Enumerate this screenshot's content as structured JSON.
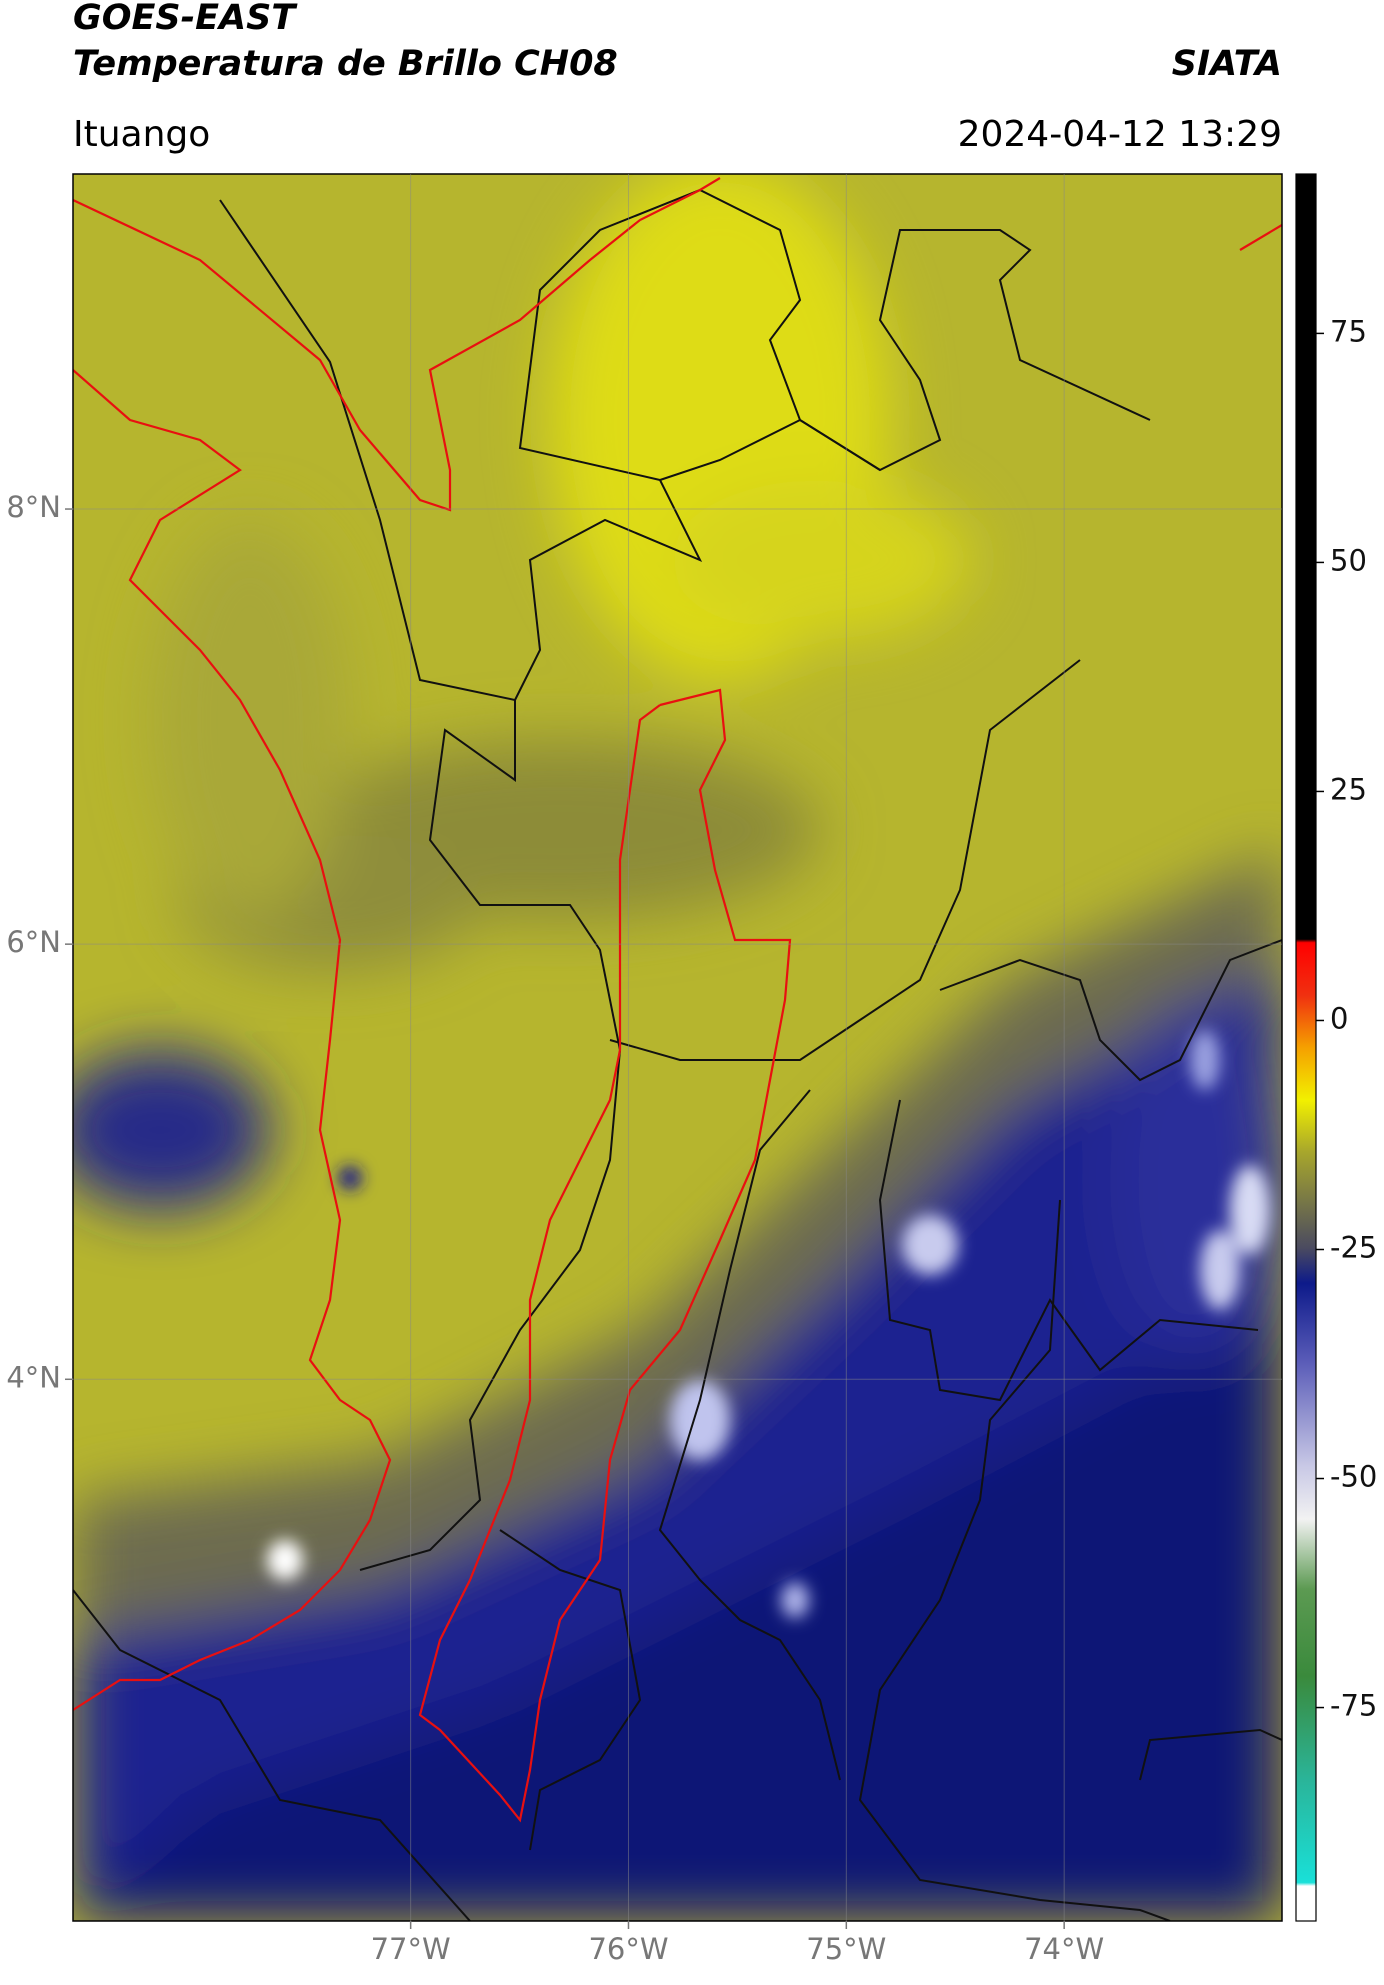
{
  "header": {
    "title": "GOES-EAST",
    "subtitle": "Temperatura de Brillo CH08",
    "source": "SIATA",
    "location": "Ituango",
    "datetime": "2024-04-12 13:29"
  },
  "map": {
    "lonlim": [
      -78.55,
      -73.0
    ],
    "latlim": [
      1.51,
      9.54
    ],
    "lonticks": [
      {
        "value": -77,
        "label": "77°W"
      },
      {
        "value": -76,
        "label": "76°W"
      },
      {
        "value": -75,
        "label": "75°W"
      },
      {
        "value": -74,
        "label": "74°W"
      }
    ],
    "latticks": [
      {
        "value": 8,
        "label": "8°N"
      },
      {
        "value": 6,
        "label": "6°N"
      },
      {
        "value": 4,
        "label": "4°N"
      }
    ],
    "grid": true
  },
  "colorbar": {
    "clim": [
      -98.3,
      92.4
    ],
    "ticks": [
      75,
      50,
      25,
      0,
      -25,
      -50,
      -75
    ]
  }
}
